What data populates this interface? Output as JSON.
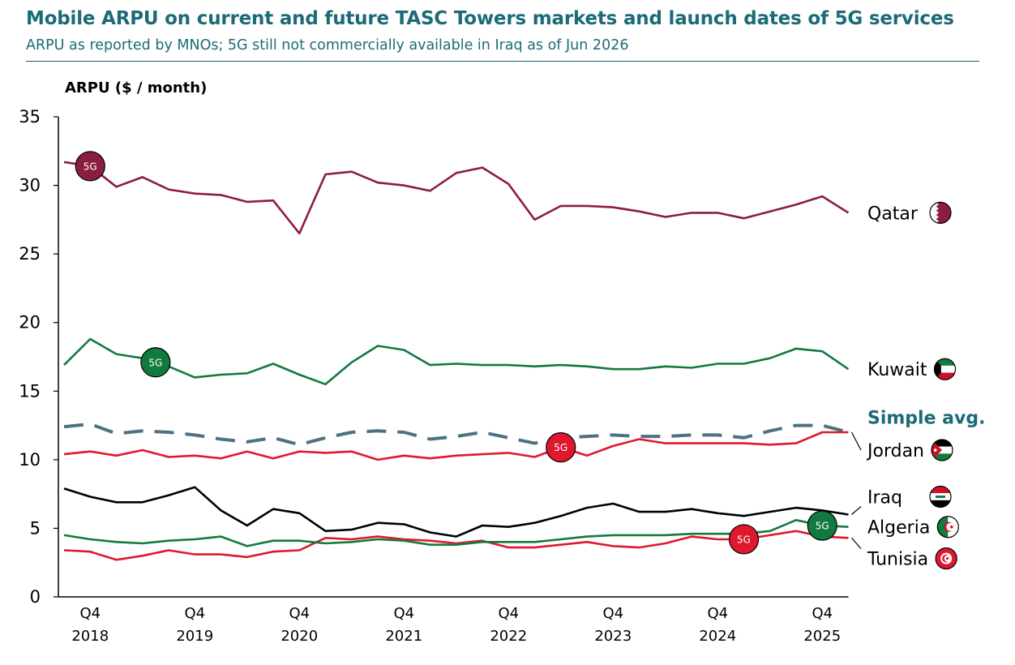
{
  "chart_data": {
    "type": "line",
    "title": "Mobile ARPU on current and future TASC Towers markets and launch dates of 5G services",
    "subtitle": "ARPU as reported by MNOs; 5G still not commercially available in Iraq as of Jun 2026",
    "ylabel": "ARPU ($ / month)",
    "ylim": [
      0,
      35
    ],
    "yticks": [
      0,
      5,
      10,
      15,
      20,
      25,
      30,
      35
    ],
    "grid": false,
    "legend": "inline-right",
    "x": [
      "Q3 2018",
      "Q4 2018",
      "Q1 2019",
      "Q2 2019",
      "Q3 2019",
      "Q4 2019",
      "Q1 2020",
      "Q2 2020",
      "Q3 2020",
      "Q4 2020",
      "Q1 2021",
      "Q2 2021",
      "Q3 2021",
      "Q4 2021",
      "Q1 2022",
      "Q2 2022",
      "Q3 2022",
      "Q4 2022",
      "Q1 2023",
      "Q2 2023",
      "Q3 2023",
      "Q4 2023",
      "Q1 2024",
      "Q2 2024",
      "Q3 2024",
      "Q4 2024",
      "Q1 2025",
      "Q2 2025",
      "Q3 2025",
      "Q4 2025",
      "Q1 2026"
    ],
    "xtick_labels": [
      {
        "index": 1,
        "line1": "Q4",
        "line2": "2018"
      },
      {
        "index": 5,
        "line1": "Q4",
        "line2": "2019"
      },
      {
        "index": 9,
        "line1": "Q4",
        "line2": "2020"
      },
      {
        "index": 13,
        "line1": "Q4",
        "line2": "2021"
      },
      {
        "index": 17,
        "line1": "Q4",
        "line2": "2022"
      },
      {
        "index": 21,
        "line1": "Q4",
        "line2": "2023"
      },
      {
        "index": 25,
        "line1": "Q4",
        "line2": "2024"
      },
      {
        "index": 29,
        "line1": "Q4",
        "line2": "2025"
      }
    ],
    "series": [
      {
        "name": "Qatar",
        "color": "#8b1e3f",
        "dashed": false,
        "flag": "qatar-flag-icon",
        "values": [
          31.7,
          31.4,
          29.9,
          30.6,
          29.7,
          29.4,
          29.3,
          28.8,
          28.9,
          26.5,
          30.8,
          31.0,
          30.2,
          30.0,
          29.6,
          30.9,
          31.3,
          30.1,
          27.5,
          28.5,
          28.5,
          28.4,
          28.1,
          27.7,
          28.0,
          28.0,
          27.6,
          28.1,
          28.6,
          29.2,
          28.0
        ],
        "badge": {
          "index": 1,
          "label": "5G"
        }
      },
      {
        "name": "Kuwait",
        "color": "#127a3e",
        "dashed": false,
        "flag": "kuwait-flag-icon",
        "values": [
          16.9,
          18.8,
          17.7,
          17.4,
          16.8,
          16.0,
          16.2,
          16.3,
          17.0,
          16.2,
          15.5,
          17.1,
          18.3,
          18.0,
          16.9,
          17.0,
          16.9,
          16.9,
          16.8,
          16.9,
          16.8,
          16.6,
          16.6,
          16.8,
          16.7,
          17.0,
          17.0,
          17.4,
          18.1,
          17.9,
          16.6
        ],
        "badge": {
          "index": 3.5,
          "label": "5G"
        }
      },
      {
        "name": "Simple avg.",
        "color": "#4d7281",
        "dashed": true,
        "flag": "",
        "values": [
          12.4,
          12.6,
          11.9,
          12.1,
          12.0,
          11.8,
          11.5,
          11.3,
          11.6,
          11.1,
          11.6,
          12.0,
          12.1,
          12.0,
          11.5,
          11.7,
          12.0,
          11.6,
          11.2,
          11.6,
          11.7,
          11.8,
          11.7,
          11.7,
          11.8,
          11.8,
          11.6,
          12.1,
          12.5,
          12.5,
          12.0
        ]
      },
      {
        "name": "Jordan",
        "color": "#e0182d",
        "dashed": false,
        "flag": "jordan-flag-icon",
        "values": [
          10.4,
          10.6,
          10.3,
          10.7,
          10.2,
          10.3,
          10.1,
          10.6,
          10.1,
          10.6,
          10.5,
          10.6,
          10.0,
          10.3,
          10.1,
          10.3,
          10.4,
          10.5,
          10.2,
          10.9,
          10.3,
          11.0,
          11.5,
          11.2,
          11.2,
          11.2,
          11.2,
          11.1,
          11.2,
          12.0,
          12.0
        ],
        "badge": {
          "index": 19,
          "label": "5G"
        }
      },
      {
        "name": "Iraq",
        "color": "#000000",
        "dashed": false,
        "flag": "iraq-flag-icon",
        "values": [
          7.9,
          7.3,
          6.9,
          6.9,
          7.4,
          8.0,
          6.3,
          5.2,
          6.4,
          6.1,
          4.8,
          4.9,
          5.4,
          5.3,
          4.7,
          4.4,
          5.2,
          5.1,
          5.4,
          5.9,
          6.5,
          6.8,
          6.2,
          6.2,
          6.4,
          6.1,
          5.9,
          6.2,
          6.5,
          6.3,
          6.0
        ]
      },
      {
        "name": "Algeria",
        "color": "#127a3e",
        "dashed": false,
        "flag": "algeria-flag-icon",
        "values": [
          4.5,
          4.2,
          4.0,
          3.9,
          4.1,
          4.2,
          4.4,
          3.7,
          4.1,
          4.1,
          3.9,
          4.0,
          4.2,
          4.1,
          3.8,
          3.8,
          4.0,
          4.0,
          4.0,
          4.2,
          4.4,
          4.5,
          4.5,
          4.5,
          4.6,
          4.6,
          4.6,
          4.8,
          5.6,
          5.2,
          5.1
        ],
        "badge": {
          "index": 29,
          "label": "5G"
        }
      },
      {
        "name": "Tunisia",
        "color": "#e0182d",
        "dashed": false,
        "flag": "tunisia-flag-icon",
        "values": [
          3.4,
          3.3,
          2.7,
          3.0,
          3.4,
          3.1,
          3.1,
          2.9,
          3.3,
          3.4,
          4.3,
          4.2,
          4.4,
          4.2,
          4.1,
          3.9,
          4.1,
          3.6,
          3.6,
          3.8,
          4.0,
          3.7,
          3.6,
          3.9,
          4.4,
          4.2,
          4.2,
          4.5,
          4.8,
          4.4,
          4.3
        ],
        "badge": {
          "index": 26,
          "label": "5G"
        }
      }
    ],
    "labels": [
      {
        "series": "Qatar",
        "text": "Qatar",
        "value": 28.0
      },
      {
        "series": "Kuwait",
        "text": "Kuwait",
        "value": 16.6
      },
      {
        "series": "Simple avg.",
        "text": "Simple avg.",
        "value": 13.1
      },
      {
        "series": "Jordan",
        "text": "Jordan",
        "value": 10.7
      },
      {
        "series": "Iraq",
        "text": "Iraq",
        "value": 7.3
      },
      {
        "series": "Algeria",
        "text": "Algeria",
        "value": 5.1
      },
      {
        "series": "Tunisia",
        "text": "Tunisia",
        "value": 2.8
      }
    ]
  }
}
